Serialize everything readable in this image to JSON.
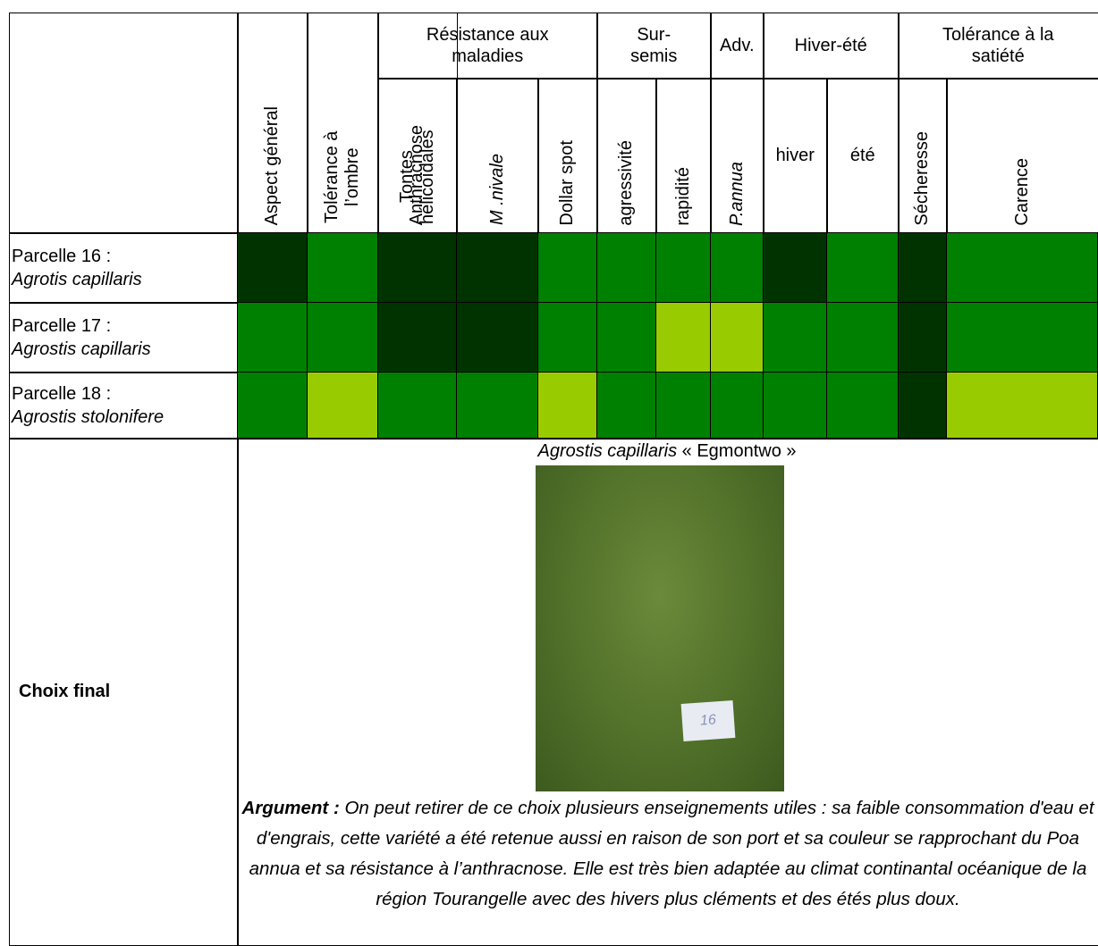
{
  "header": {
    "columns": [
      "Aspect général",
      "Tolérance à l’ombre",
      "Tontes hélicoïdales"
    ],
    "groups": [
      "Résistance aux maladies",
      "Sur-semis",
      "Adv.",
      "Hiver-été",
      "Tolérance à la satiété"
    ],
    "subcolumns": [
      "Anthracnose",
      "M .nivale",
      "Dollar spot",
      "agressivité",
      "rapidité",
      "P.annua",
      "hiver",
      "été",
      "Sécheresse",
      "Carence"
    ]
  },
  "rows": [
    {
      "label": "Parcelle 16 :",
      "species": "Agrotis capillaris",
      "colors": [
        "#003300",
        "#008000",
        "#003300",
        "#003300",
        "#008000",
        "#008000",
        "#008000",
        "#008000",
        "#003300",
        "#008000",
        "#003300",
        "#008000",
        "#003300"
      ]
    },
    {
      "label": "Parcelle 17 :",
      "species": "Agrostis capillaris",
      "colors": [
        "#008000",
        "#008000",
        "#003300",
        "#003300",
        "#008000",
        "#008000",
        "#99cc00",
        "#99cc00",
        "#008000",
        "#008000",
        "#003300",
        "#008000",
        "#003300"
      ]
    },
    {
      "label": "Parcelle 18 :",
      "species": "Agrostis stolonifere",
      "colors": [
        "#008000",
        "#99cc00",
        "#008000",
        "#008000",
        "#99cc00",
        "#008000",
        "#008000",
        "#008000",
        "#008000",
        "#008000",
        "#003300",
        "#99cc00",
        "#008000"
      ]
    }
  ],
  "final": {
    "label": "Choix final",
    "title_species": "Agrostis capillaris",
    "title_name": "« Egmontwo »",
    "photo_label": "16",
    "argument_label": "Argument :",
    "argument": "On peut retirer de ce choix  plusieurs enseignements utiles : sa faible consommation d'eau et d'engrais, cette variété a été retenue aussi en raison de son port et sa couleur se rapprochant du Poa annua et sa résistance à l’anthracnose. Elle est très bien adaptée au climat continantal océanique de la région Tourangelle avec des hivers plus cléments et des étés plus doux."
  }
}
